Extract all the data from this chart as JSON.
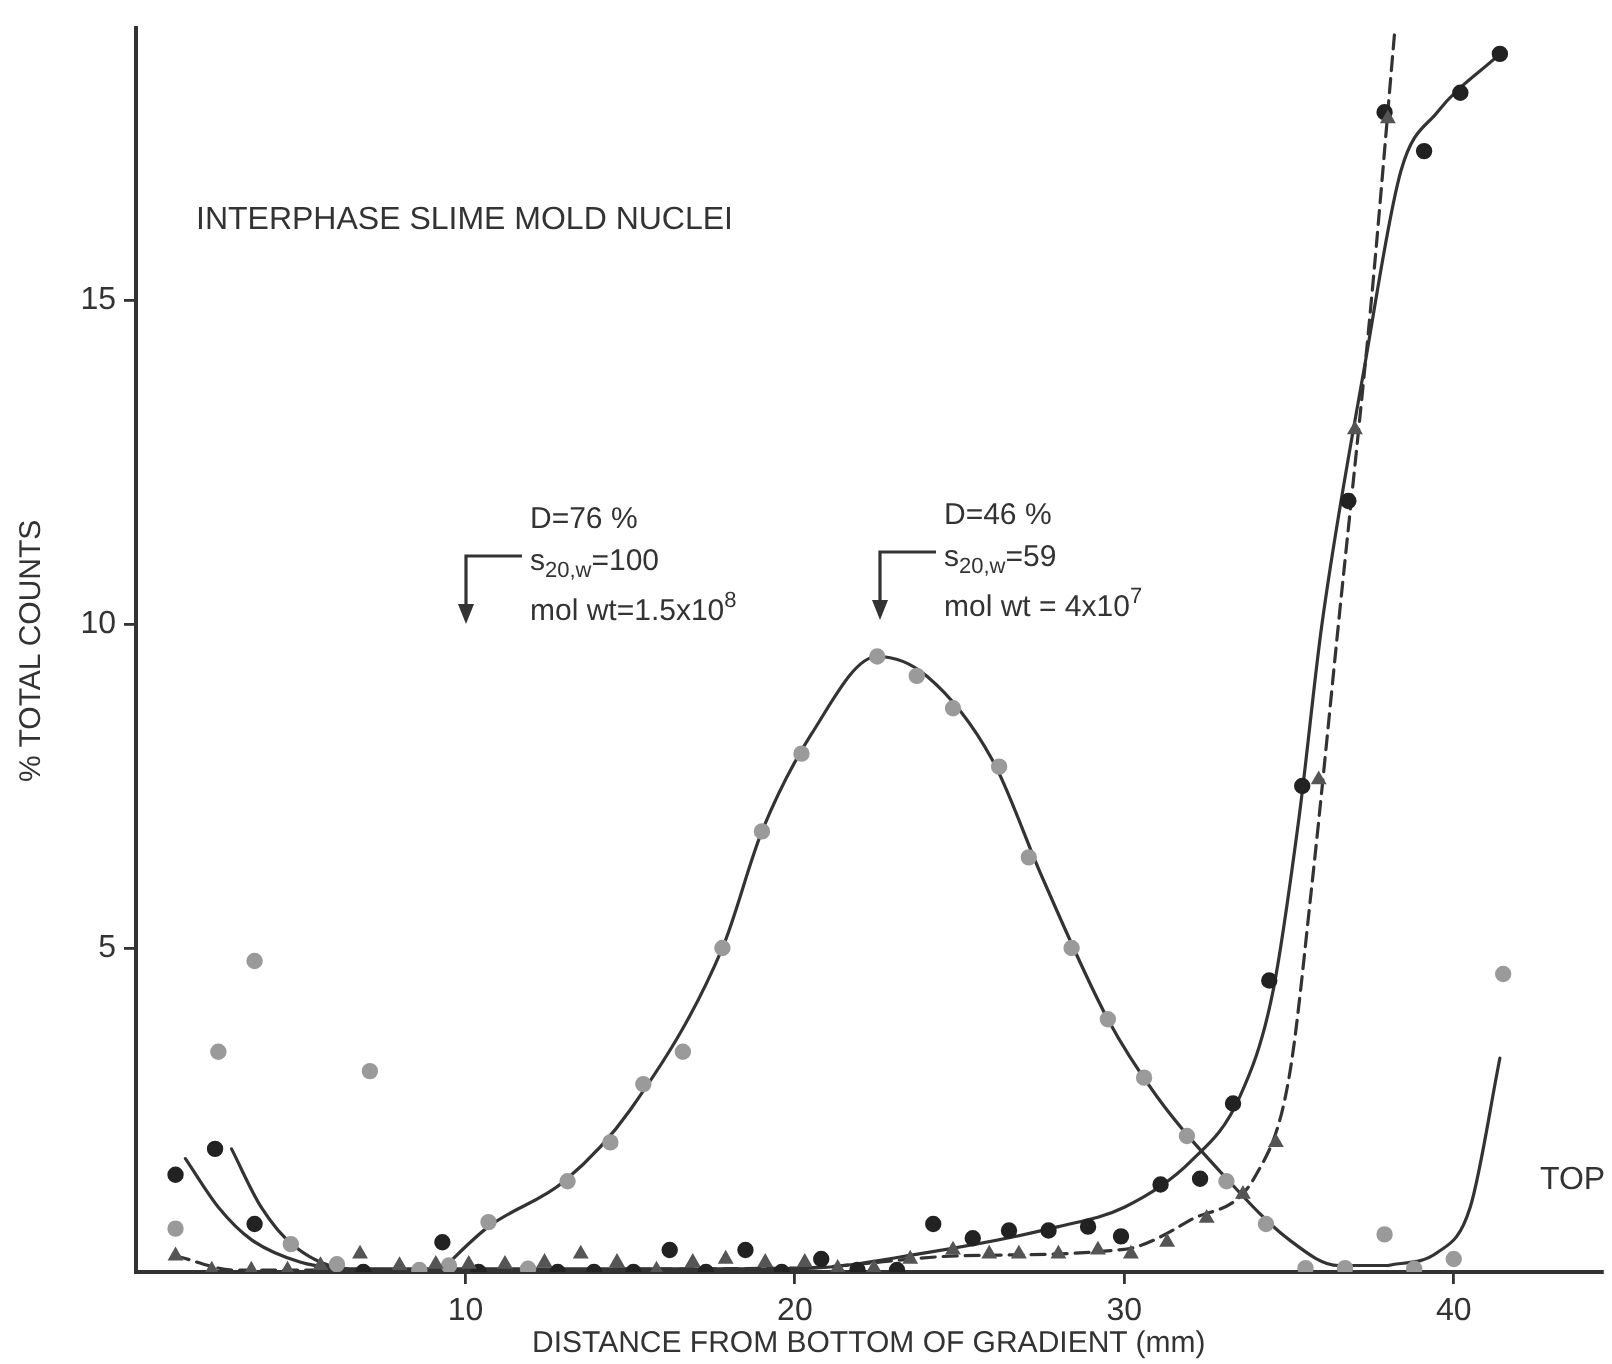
{
  "chart_data": {
    "type": "scatter",
    "title": "INTERPHASE SLIME MOLD NUCLEI",
    "xlabel": "DISTANCE FROM BOTTOM OF GRADIENT (mm)",
    "ylabel": "% TOTAL COUNTS",
    "xlim": [
      0,
      44.5
    ],
    "ylim": [
      0,
      19.2
    ],
    "xticks": [
      10,
      20,
      30,
      40
    ],
    "yticks": [
      5,
      10,
      15
    ],
    "grid": false,
    "legend": false,
    "annotations": [
      "D=76 %\ns$_{20,w}$=100\nmol wt=1.5x10$^{8}$",
      "D=46 %\ns$_{20,w}$=59\nmol wt = 4x10$^{7}$",
      "TOP"
    ],
    "series": [
      {
        "marker": "circle",
        "color": "#9a9a9a",
        "x": [
          1.2,
          2.5,
          3.6,
          4.7,
          6.1,
          7.1,
          8.6,
          9.5,
          10.7,
          11.9,
          13.1,
          14.4,
          15.4,
          16.6,
          17.8,
          19.0,
          20.2,
          22.5,
          23.7,
          24.8,
          26.2,
          27.1,
          28.4,
          29.5,
          30.6,
          31.9,
          33.1,
          34.3,
          35.5,
          36.7,
          37.9,
          38.8,
          40.0,
          41.5
        ],
        "values": [
          0.67,
          3.4,
          4.8,
          0.43,
          0.12,
          3.1,
          0.03,
          0.1,
          0.77,
          0.05,
          1.4,
          2.0,
          2.9,
          3.4,
          5.0,
          6.8,
          8.0,
          9.5,
          9.2,
          8.7,
          7.8,
          6.4,
          5.0,
          3.9,
          3.0,
          2.1,
          1.4,
          0.74,
          0.06,
          0.06,
          0.58,
          0.05,
          0.2,
          4.6
        ]
      },
      {
        "marker": "circle",
        "color": "#222222",
        "x": [
          1.2,
          2.4,
          3.6,
          6.9,
          9.3,
          10.4,
          12.8,
          13.9,
          15.1,
          16.2,
          17.3,
          18.5,
          19.6,
          20.8,
          21.9,
          23.1,
          24.2,
          25.4,
          26.5,
          27.7,
          28.9,
          29.9,
          31.1,
          32.3,
          33.3,
          34.4,
          35.4,
          36.8,
          37.9,
          39.1,
          40.2,
          41.4
        ],
        "values": [
          1.5,
          1.9,
          0.74,
          0,
          0.46,
          0,
          0,
          0,
          0,
          0.34,
          0,
          0.34,
          0,
          0.2,
          0.03,
          0.03,
          0.74,
          0.52,
          0.64,
          0.64,
          0.7,
          0.55,
          1.35,
          1.44,
          2.6,
          4.5,
          7.5,
          11.9,
          17.9,
          17.3,
          18.2,
          18.8
        ]
      },
      {
        "marker": "triangle",
        "color": "#555555",
        "x": [
          1.2,
          2.3,
          3.5,
          4.6,
          5.6,
          6.8,
          8.0,
          9.1,
          10.1,
          11.2,
          12.4,
          13.5,
          14.6,
          15.8,
          16.9,
          17.9,
          19.1,
          20.3,
          21.3,
          22.4,
          23.5,
          24.8,
          25.9,
          26.8,
          28.0,
          29.2,
          30.2,
          31.3,
          32.5,
          33.6,
          34.6,
          35.9,
          37.0,
          38.0
        ],
        "values": [
          0.25,
          0.03,
          0.03,
          0.03,
          0.1,
          0.28,
          0.1,
          0.12,
          0.12,
          0.12,
          0.15,
          0.28,
          0.15,
          0.03,
          0.15,
          0.2,
          0.15,
          0.15,
          0.06,
          0.06,
          0.2,
          0.34,
          0.28,
          0.28,
          0.28,
          0.34,
          0.28,
          0.46,
          0.83,
          1.2,
          2.0,
          7.6,
          13.0,
          17.8
        ]
      },
      {
        "type": "line",
        "marker": "none",
        "line_style": "solid",
        "color": "#333333",
        "x": [
          9.2,
          10.7,
          13,
          15,
          17.8,
          19,
          20.5,
          22.5,
          24,
          26,
          27.5,
          29.5,
          31,
          33,
          35,
          36.5,
          38
        ],
        "values": [
          0,
          0.7,
          1.4,
          2.5,
          5,
          6.8,
          8.3,
          9.5,
          9.2,
          7.9,
          6.1,
          3.9,
          2.7,
          1.5,
          0.5,
          0.1,
          0.1
        ]
      },
      {
        "type": "line",
        "marker": "none",
        "line_style": "solid",
        "color": "#333333",
        "x": [
          38,
          39.5,
          40.5,
          41.4
        ],
        "values": [
          0.1,
          0.3,
          1.0,
          3.3
        ]
      },
      {
        "type": "line",
        "marker": "none",
        "line_style": "solid",
        "color": "#333333",
        "x": [
          1.5,
          2.5,
          3.5,
          5,
          6.5
        ],
        "values": [
          1.75,
          1.0,
          0.5,
          0.15,
          0.03
        ]
      },
      {
        "type": "line",
        "marker": "none",
        "line_style": "solid",
        "color": "#333333",
        "x": [
          2.9,
          3.8,
          4.8,
          6.5,
          20,
          24,
          28,
          30,
          32,
          33.5,
          34.5,
          35.3,
          36,
          37.3,
          38.4,
          39.5,
          41.4
        ],
        "values": [
          1.9,
          1.0,
          0.4,
          0.05,
          0.05,
          0.3,
          0.7,
          1.0,
          1.7,
          2.7,
          4.3,
          7,
          10,
          14,
          17.0,
          17.9,
          18.8
        ]
      },
      {
        "type": "line",
        "marker": "none",
        "line_style": "dashed",
        "color": "#333333",
        "x": [
          1.2,
          3,
          20,
          25,
          30,
          32,
          34,
          35,
          35.7,
          36.5,
          37.5,
          38.2
        ],
        "values": [
          0.25,
          0.03,
          0.06,
          0.25,
          0.35,
          0.8,
          1.5,
          3,
          6,
          10,
          15,
          19.1
        ]
      }
    ]
  }
}
